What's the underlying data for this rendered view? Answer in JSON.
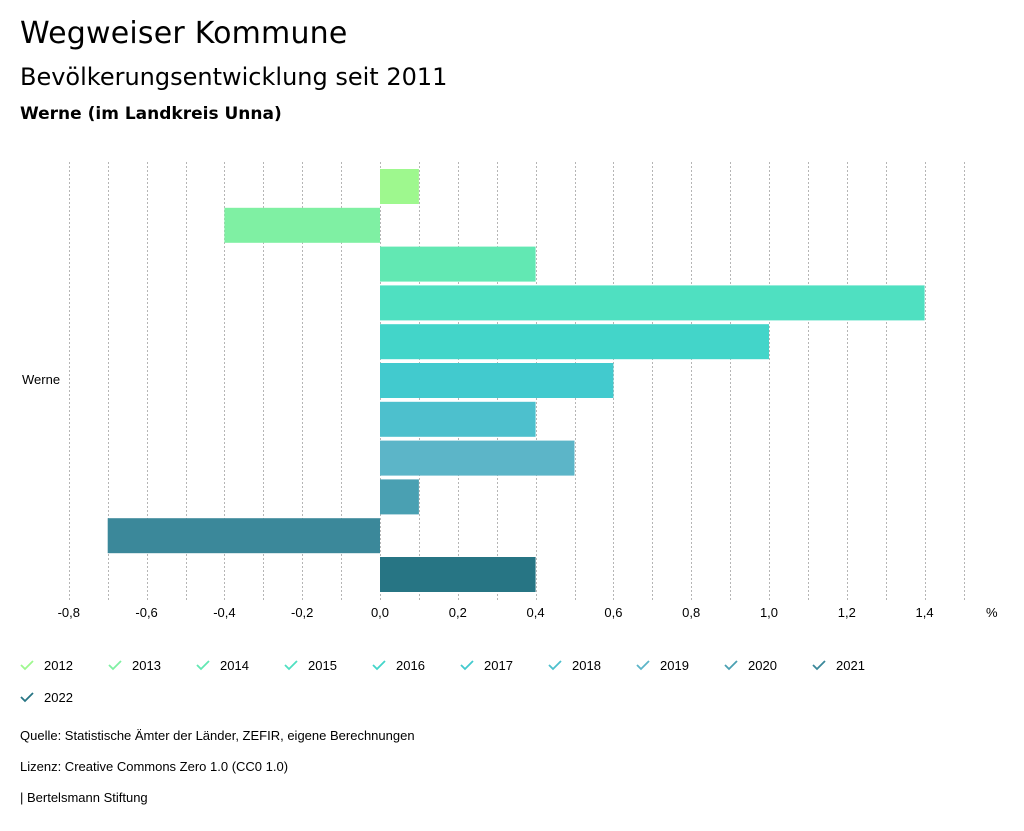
{
  "header": {
    "title": "Wegweiser Kommune",
    "subtitle": "Bevölkerungsentwicklung seit 2011",
    "region": "Werne (im Landkreis Unna)"
  },
  "chart_data": {
    "type": "bar",
    "orientation": "horizontal",
    "title": "Bevölkerungsentwicklung seit 2011",
    "categories": [
      "Werne"
    ],
    "xlabel": "%",
    "xlim": [
      -0.8,
      1.5
    ],
    "xticks": [
      -0.8,
      -0.6,
      -0.4,
      -0.2,
      0.0,
      0.2,
      0.4,
      0.6,
      0.8,
      1.0,
      1.2,
      1.4
    ],
    "xtick_labels": [
      "-0,8",
      "-0,6",
      "-0,4",
      "-0,2",
      "0,0",
      "0,2",
      "0,4",
      "0,6",
      "0,8",
      "1,0",
      "1,2",
      "1,4"
    ],
    "unit_label": "%",
    "grid": true,
    "legend_position": "bottom",
    "series": [
      {
        "name": "2012",
        "values": [
          0.1
        ],
        "color": "#9ef88e"
      },
      {
        "name": "2013",
        "values": [
          -0.4
        ],
        "color": "#7ff0a3"
      },
      {
        "name": "2014",
        "values": [
          0.4
        ],
        "color": "#62e8b3"
      },
      {
        "name": "2015",
        "values": [
          1.4
        ],
        "color": "#4fe0c1"
      },
      {
        "name": "2016",
        "values": [
          1.0
        ],
        "color": "#43d5c9"
      },
      {
        "name": "2017",
        "values": [
          0.6
        ],
        "color": "#42cace"
      },
      {
        "name": "2018",
        "values": [
          0.4
        ],
        "color": "#4dc0cd"
      },
      {
        "name": "2019",
        "values": [
          0.5
        ],
        "color": "#5cb5c8"
      },
      {
        "name": "2020",
        "values": [
          0.1
        ],
        "color": "#4aa0b2"
      },
      {
        "name": "2021",
        "values": [
          -0.7
        ],
        "color": "#3b889a"
      },
      {
        "name": "2022",
        "values": [
          0.4
        ],
        "color": "#277584"
      }
    ]
  },
  "footer": {
    "source": "Quelle: Statistische Ämter der Länder, ZEFIR, eigene Berechnungen",
    "license": "Lizenz: Creative Commons Zero 1.0 (CC0 1.0)",
    "publisher": "| Bertelsmann Stiftung"
  }
}
